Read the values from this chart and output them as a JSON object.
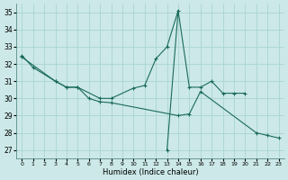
{
  "bg_color": "#cce8e8",
  "grid_color": "#aad4d4",
  "line_color": "#1a6b5a",
  "xlabel": "Humidex (Indice chaleur)",
  "xlim": [
    -0.5,
    23.5
  ],
  "ylim": [
    26.5,
    35.5
  ],
  "xticks": [
    0,
    1,
    2,
    3,
    4,
    5,
    6,
    7,
    8,
    9,
    10,
    11,
    12,
    13,
    14,
    15,
    16,
    17,
    18,
    19,
    20,
    21,
    22,
    23
  ],
  "yticks": [
    27,
    28,
    29,
    30,
    31,
    32,
    33,
    34,
    35
  ],
  "line1_x": [
    0,
    1,
    3,
    4,
    5,
    6,
    7,
    8,
    14,
    15,
    16,
    21,
    22,
    23
  ],
  "line1_y": [
    32.5,
    31.8,
    31.0,
    30.65,
    30.65,
    30.0,
    29.8,
    29.75,
    29.0,
    29.1,
    30.4,
    28.0,
    27.85,
    27.7
  ],
  "line2_x": [
    0,
    3,
    4,
    5,
    7,
    8,
    10,
    11,
    12,
    13,
    14,
    15,
    16,
    17,
    18,
    19,
    20
  ],
  "line2_y": [
    32.4,
    31.0,
    30.65,
    30.65,
    30.0,
    30.0,
    30.6,
    30.75,
    32.3,
    33.0,
    35.1,
    30.65,
    30.65,
    31.0,
    30.3,
    30.3,
    30.3
  ],
  "line3_x": [
    13,
    14
  ],
  "line3_y": [
    27.0,
    35.1
  ]
}
